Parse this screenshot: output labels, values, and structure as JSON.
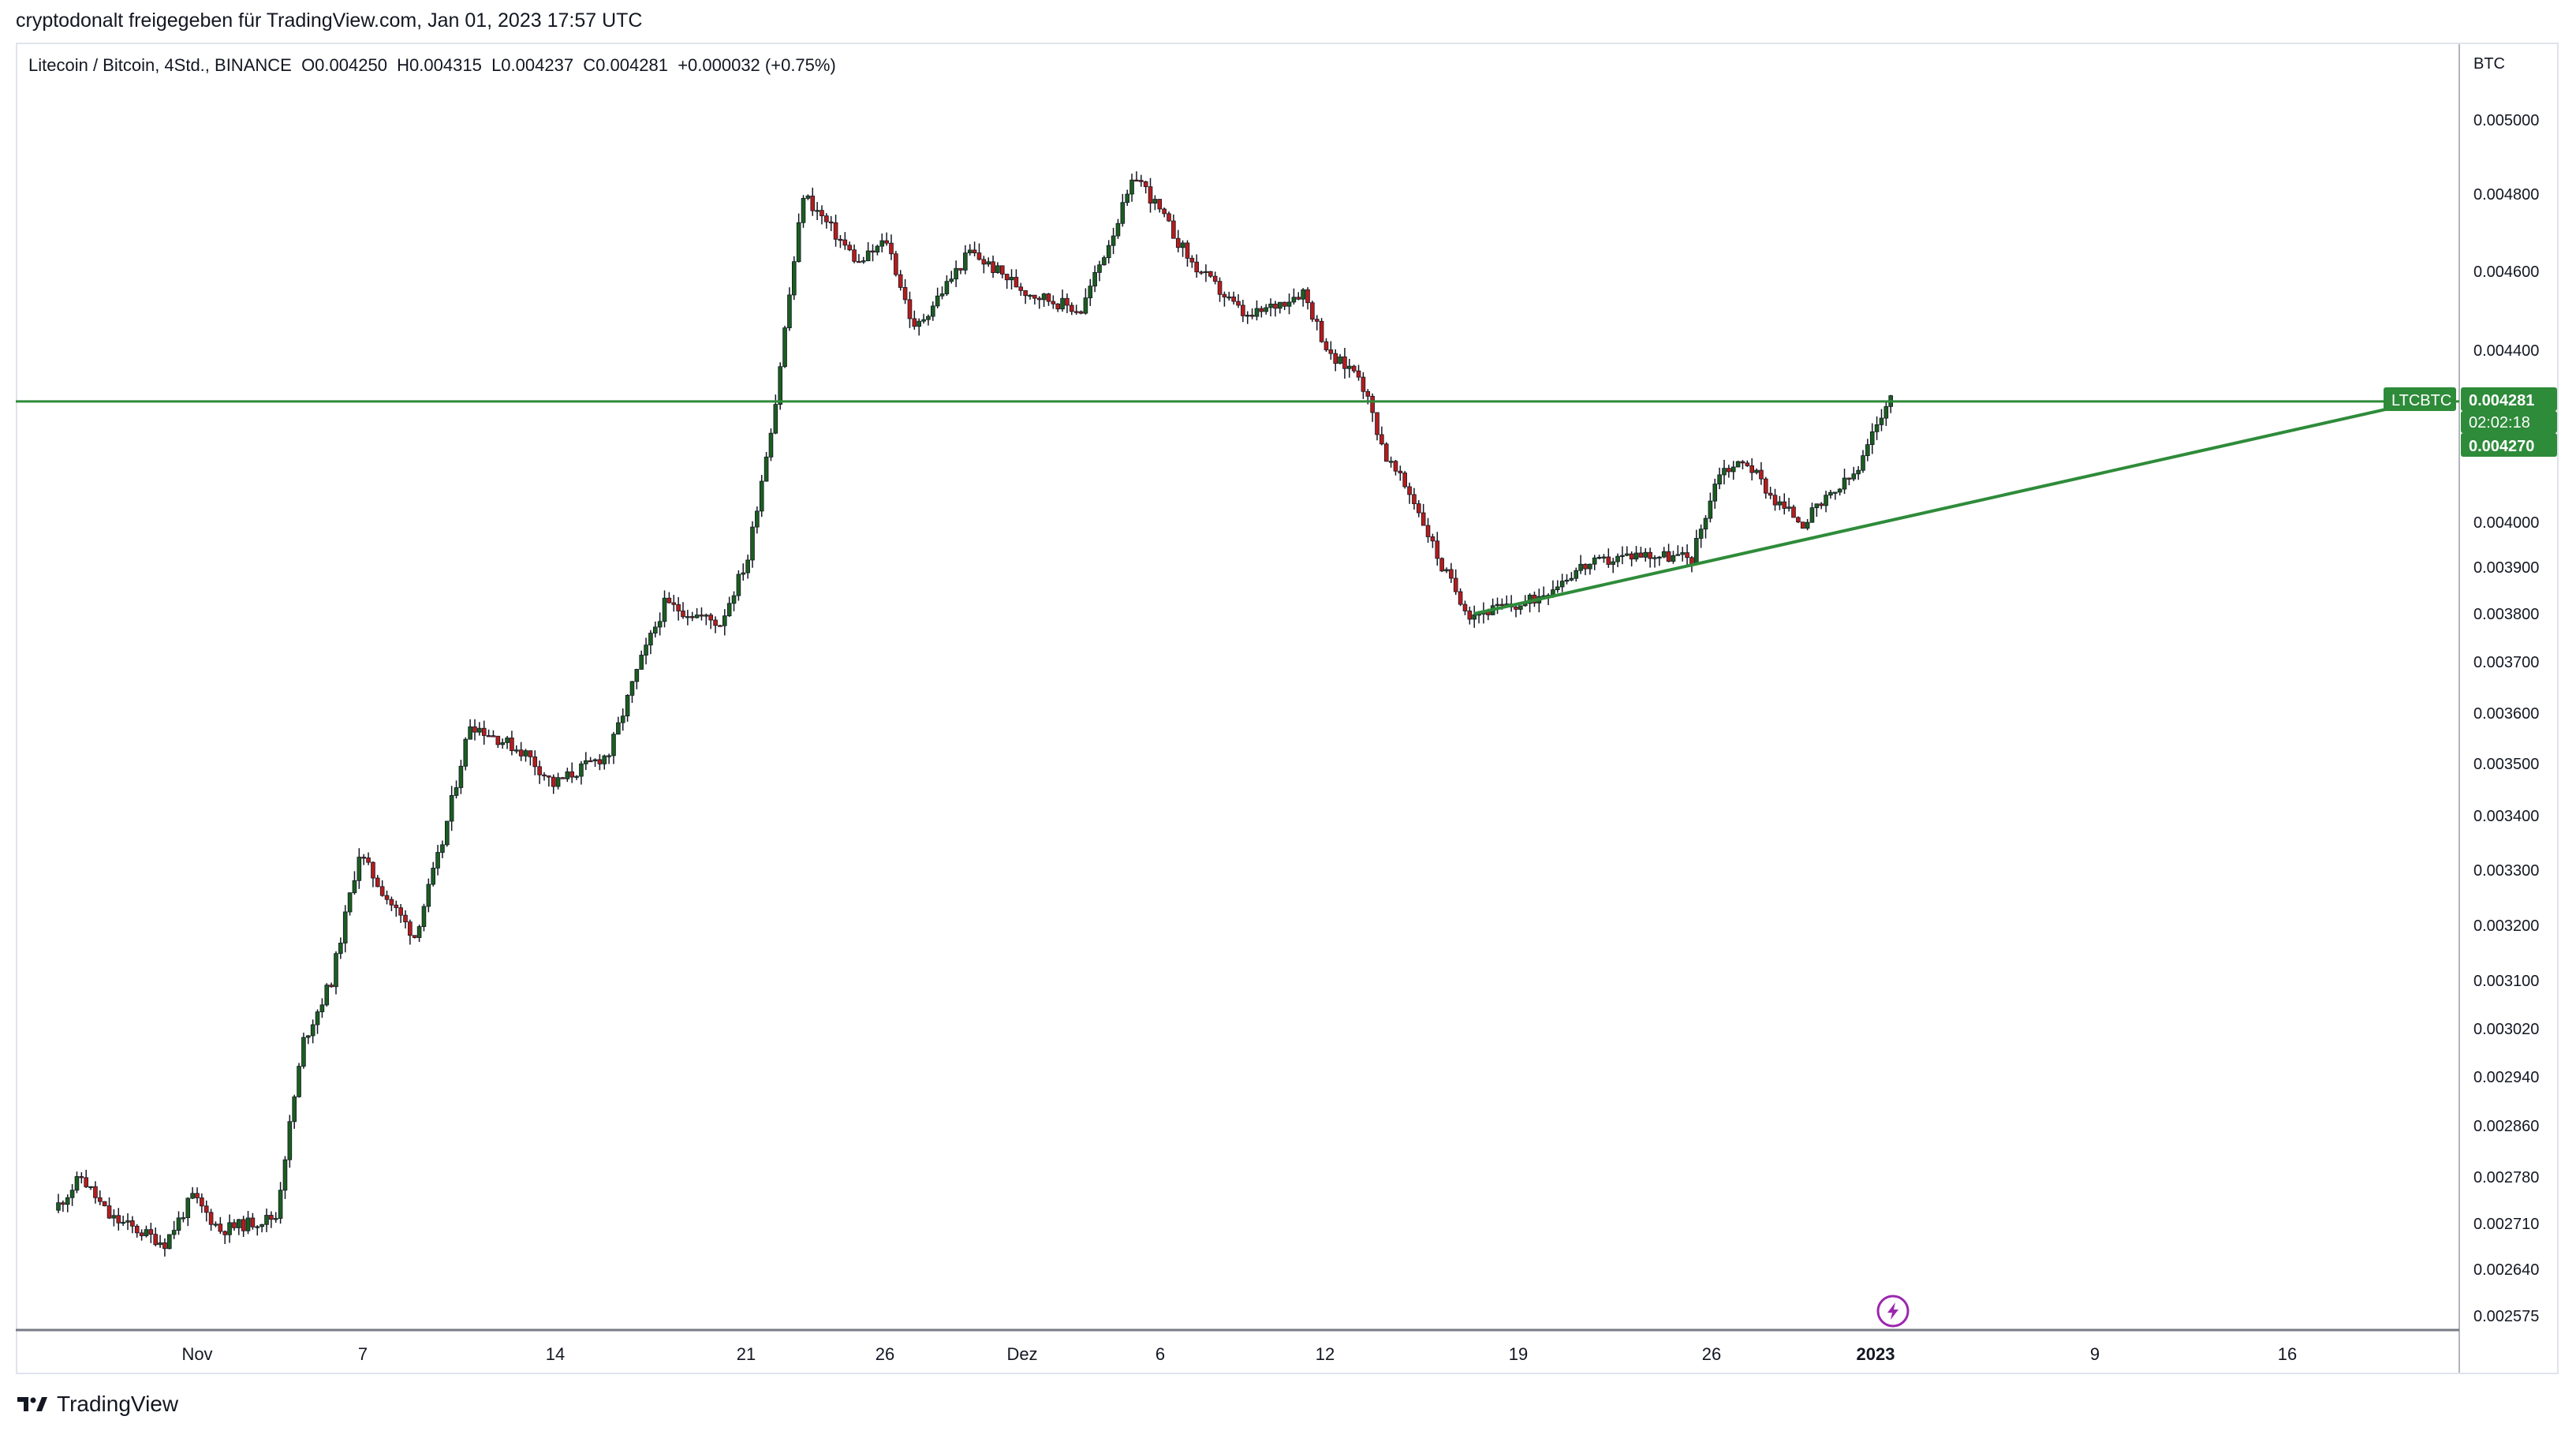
{
  "header": {
    "shared_by": "cryptodonalt freigegeben für TradingView.com, Jan 01, 2023 17:57 UTC"
  },
  "legend": {
    "symbol": "Litecoin / Bitcoin, 4Std., BINANCE",
    "open": "O0.004250",
    "high": "H0.004315",
    "low": "L0.004237",
    "close": "C0.004281",
    "change": "+0.000032 (+0.75%)"
  },
  "footer": {
    "brand": "TradingView"
  },
  "icons": {
    "logo": "tradingview-logo-icon",
    "flash": "lightning-icon"
  },
  "colors": {
    "up": "#26a69a",
    "up_body": "#1b5e20",
    "down": "#b71c1c",
    "line": "#2e8b3a",
    "badge": "#2e8b3a"
  },
  "chart_data": {
    "type": "candlestick",
    "title": "Litecoin / Bitcoin, 4Std., BINANCE",
    "y_unit": "BTC",
    "y_ticks": [
      "0.005000",
      "0.004800",
      "0.004600",
      "0.004400",
      "0.004000",
      "0.003900",
      "0.003800",
      "0.003700",
      "0.003600",
      "0.003500",
      "0.003400",
      "0.003300",
      "0.003200",
      "0.003100",
      "0.003020",
      "0.002940",
      "0.002860",
      "0.002780",
      "0.002710",
      "0.002640",
      "0.002575"
    ],
    "x_ticks": [
      "Nov",
      "7",
      "14",
      "21",
      "26",
      "Dez",
      "6",
      "12",
      "19",
      "26",
      "2023",
      "9",
      "16"
    ],
    "x_bold": "2023",
    "price_path": [
      {
        "date": "Oct 27",
        "price": 0.00273
      },
      {
        "date": "Oct 28",
        "price": 0.00278
      },
      {
        "date": "Oct 29",
        "price": 0.00272
      },
      {
        "date": "Oct 31",
        "price": 0.00268
      },
      {
        "date": "Nov 1",
        "price": 0.00275
      },
      {
        "date": "Nov 2",
        "price": 0.0027
      },
      {
        "date": "Nov 4",
        "price": 0.00272
      },
      {
        "date": "Nov 5",
        "price": 0.003
      },
      {
        "date": "Nov 6",
        "price": 0.0031
      },
      {
        "date": "Nov 7",
        "price": 0.00333
      },
      {
        "date": "Nov 8",
        "price": 0.00325
      },
      {
        "date": "Nov 9",
        "price": 0.00318
      },
      {
        "date": "Nov 10",
        "price": 0.00335
      },
      {
        "date": "Nov 11",
        "price": 0.00358
      },
      {
        "date": "Nov 13",
        "price": 0.00352
      },
      {
        "date": "Nov 14",
        "price": 0.00346
      },
      {
        "date": "Nov 16",
        "price": 0.00352
      },
      {
        "date": "Nov 17",
        "price": 0.00368
      },
      {
        "date": "Nov 18",
        "price": 0.00382
      },
      {
        "date": "Nov 20",
        "price": 0.00378
      },
      {
        "date": "Nov 21",
        "price": 0.00392
      },
      {
        "date": "Nov 22",
        "price": 0.00428
      },
      {
        "date": "Nov 23",
        "price": 0.0048
      },
      {
        "date": "Nov 25",
        "price": 0.00462
      },
      {
        "date": "Nov 26",
        "price": 0.00468
      },
      {
        "date": "Nov 27",
        "price": 0.00445
      },
      {
        "date": "Nov 29",
        "price": 0.00465
      },
      {
        "date": "Dec 1",
        "price": 0.00455
      },
      {
        "date": "Dec 3",
        "price": 0.0045
      },
      {
        "date": "Dec 5",
        "price": 0.00485
      },
      {
        "date": "Dec 7",
        "price": 0.00462
      },
      {
        "date": "Dec 9",
        "price": 0.00448
      },
      {
        "date": "Dec 11",
        "price": 0.00455
      },
      {
        "date": "Dec 12",
        "price": 0.00438
      },
      {
        "date": "Dec 13",
        "price": 0.00435
      },
      {
        "date": "Dec 14",
        "price": 0.00415
      },
      {
        "date": "Dec 15",
        "price": 0.00405
      },
      {
        "date": "Dec 16",
        "price": 0.0039
      },
      {
        "date": "Dec 17",
        "price": 0.0038
      },
      {
        "date": "Dec 19",
        "price": 0.00382
      },
      {
        "date": "Dec 21",
        "price": 0.0039
      },
      {
        "date": "Dec 23",
        "price": 0.00393
      },
      {
        "date": "Dec 25",
        "price": 0.00392
      },
      {
        "date": "Dec 26",
        "price": 0.00412
      },
      {
        "date": "Dec 27",
        "price": 0.00414
      },
      {
        "date": "Dec 28",
        "price": 0.00405
      },
      {
        "date": "Dec 29",
        "price": 0.004
      },
      {
        "date": "Dec 31",
        "price": 0.00412
      },
      {
        "date": "Jan 1",
        "price": 0.00428
      }
    ],
    "horizontal_line": {
      "price": 0.004281
    },
    "trend_line": {
      "start": {
        "date": "Dec 17",
        "price": 0.0038
      },
      "end": {
        "date": "Jan 19",
        "price": 0.004265
      }
    },
    "price_labels": {
      "symbol": "LTCBTC",
      "last": "0.004281",
      "countdown": "02:02:18",
      "prev": "0.004270"
    }
  }
}
